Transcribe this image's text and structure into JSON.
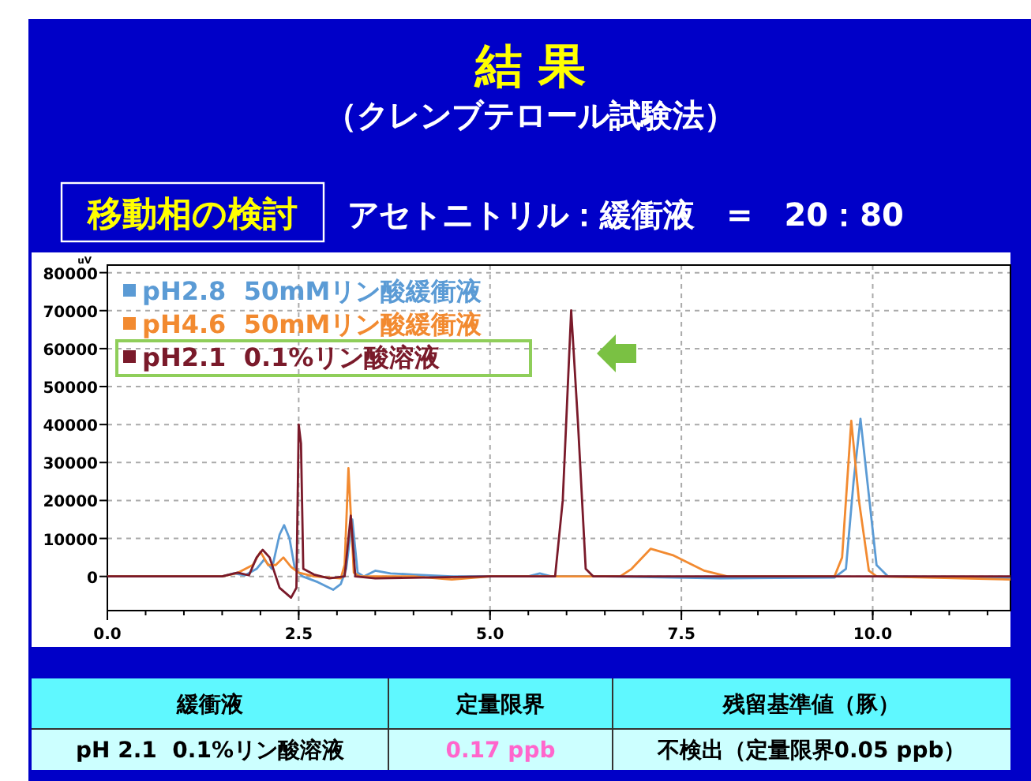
{
  "chart_data": [
    {
      "type": "line",
      "title": "結 果",
      "subtitle": "（クレンブテロール試験法）",
      "annotations": [
        "移動相の検討",
        "アセトニトリル：緩衝液　=　20：80"
      ],
      "ylabel": "uV",
      "xlim": [
        0,
        11.8
      ],
      "ylim": [
        -9000,
        82000
      ],
      "xticks": [
        {
          "value": 0,
          "label": "0.0"
        },
        {
          "value": 2.5,
          "label": "2.5"
        },
        {
          "value": 5,
          "label": "5.0"
        },
        {
          "value": 7.5,
          "label": "7.5"
        },
        {
          "value": 10,
          "label": "10.0"
        }
      ],
      "yticks": [
        0,
        10000,
        20000,
        30000,
        40000,
        50000,
        60000,
        70000,
        80000
      ],
      "grid": true,
      "legend": "top left",
      "line_style": "solid",
      "marker": "none",
      "series": [
        {
          "name": "pH2.8  50mMリン酸緩衝液",
          "color": "#5b9bd5",
          "x": [
            0,
            1.5,
            1.65,
            1.8,
            1.95,
            2.05,
            2.15,
            2.25,
            2.31,
            2.38,
            2.45,
            2.55,
            2.75,
            2.95,
            3.05,
            3.12,
            3.2,
            3.27,
            3.35,
            3.5,
            3.7,
            4.0,
            4.5,
            5.5,
            5.65,
            5.8,
            6.5,
            8.0,
            9.5,
            9.65,
            9.75,
            9.84,
            9.93,
            10.05,
            10.2,
            11.8
          ],
          "values": [
            0,
            0,
            800,
            300,
            2000,
            4500,
            2000,
            11000,
            13500,
            10000,
            2000,
            0,
            -1500,
            -3500,
            -2000,
            2000,
            15000,
            1000,
            0,
            1500,
            800,
            500,
            0,
            0,
            800,
            0,
            0,
            -500,
            -300,
            2000,
            25000,
            41500,
            25000,
            3000,
            0,
            -500
          ]
        },
        {
          "name": "pH4.6  50mMリン酸緩衝液",
          "color": "#f28a30",
          "x": [
            0,
            1.5,
            1.7,
            1.9,
            2.0,
            2.1,
            2.2,
            2.3,
            2.4,
            2.5,
            2.7,
            3.05,
            3.1,
            3.15,
            3.22,
            3.3,
            4.0,
            4.5,
            5.0,
            6.7,
            6.85,
            7.1,
            7.4,
            7.8,
            8.1,
            9.5,
            9.6,
            9.72,
            9.82,
            9.95,
            10.05,
            11.8
          ],
          "values": [
            0,
            0,
            900,
            3000,
            6500,
            3000,
            3000,
            5000,
            2500,
            1000,
            0,
            -500,
            3000,
            28500,
            1000,
            0,
            0,
            -800,
            0,
            0,
            2000,
            7300,
            5500,
            1500,
            0,
            0,
            5000,
            41000,
            20000,
            1500,
            0,
            -800
          ]
        },
        {
          "name": "pH2.1  0.1%リン酸溶液",
          "color": "#7a1a2a",
          "x": [
            0,
            1.5,
            1.7,
            1.85,
            1.95,
            2.03,
            2.12,
            2.25,
            2.4,
            2.47,
            2.5,
            2.53,
            2.56,
            2.7,
            2.9,
            3.1,
            3.18,
            3.24,
            3.5,
            5.0,
            5.85,
            5.95,
            6.06,
            6.15,
            6.25,
            6.35,
            8.5,
            11.8
          ],
          "values": [
            0,
            0,
            1000,
            300,
            5000,
            7000,
            5000,
            -3000,
            -5600,
            -3000,
            40000,
            35000,
            2000,
            500,
            -500,
            0,
            16000,
            0,
            -500,
            0,
            0,
            20000,
            70100,
            40000,
            2000,
            0,
            0,
            0
          ]
        }
      ]
    },
    {
      "type": "other",
      "categories": [
        "緩衝液",
        "定量限界",
        "残留基準値（豚）"
      ],
      "annotations": [
        "pH 2.1  0.1%リン酸溶液",
        "0.17 ppb",
        "不検出（定量限界0.05 ppb）"
      ]
    }
  ]
}
